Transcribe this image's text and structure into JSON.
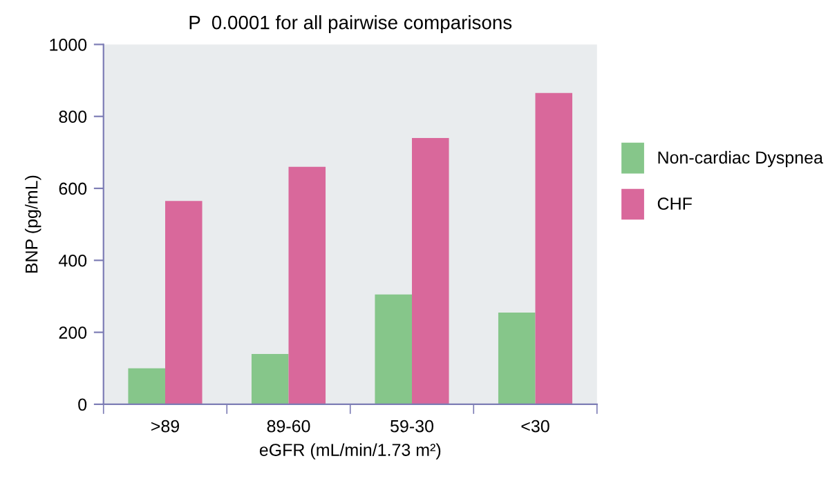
{
  "chart_data": {
    "type": "bar",
    "title": "P  0.0001 for all pairwise comparisons",
    "xlabel": "eGFR (mL/min/1.73 m²)",
    "ylabel": "BNP (pg/mL)",
    "categories": [
      ">89",
      "89-60",
      "59-30",
      "<30"
    ],
    "series": [
      {
        "name": "Non-cardiac Dyspnea",
        "color": "#86c68a",
        "values": [
          100,
          140,
          305,
          255
        ]
      },
      {
        "name": "CHF",
        "color": "#d9689b",
        "values": [
          565,
          660,
          740,
          865
        ]
      }
    ],
    "ylim": [
      0,
      1000
    ],
    "yticks": [
      0,
      200,
      400,
      600,
      800,
      1000
    ],
    "grid": false,
    "legend": "right"
  }
}
